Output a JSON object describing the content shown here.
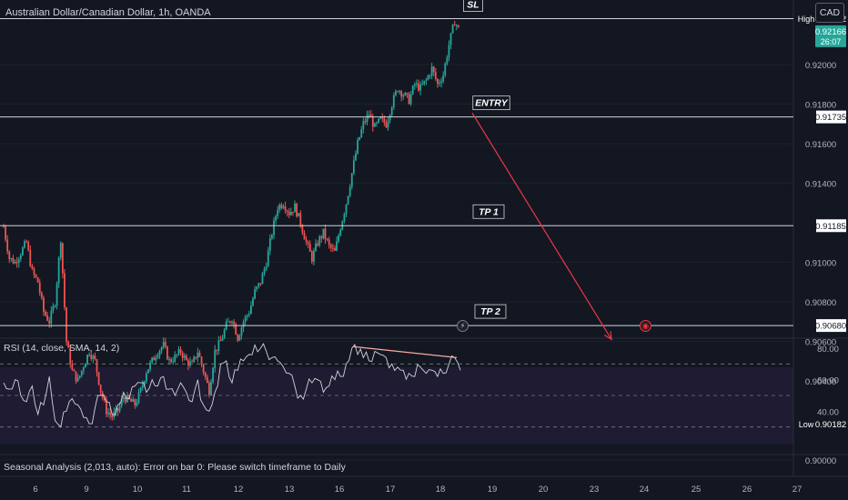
{
  "header": {
    "symbol_title": "Australian Dollar/Canadian Dollar, 1h, OANDA",
    "currency_button": "CAD"
  },
  "colors": {
    "background": "#131722",
    "bull": "#26a69a",
    "bear": "#ef5350",
    "level_line": "#d1d4dc",
    "arrow": "#f23645",
    "rsi_line": "#d1d4dc",
    "rsi_band": "#1e1b33",
    "divergence": "#f7a9a0",
    "last_price_badge": "#26a69a"
  },
  "chart_data": {
    "type": "candlestick",
    "timeframe": "1h",
    "y_axis": {
      "range": [
        0.9,
        0.924
      ],
      "tick_labels": [
        "0.92000",
        "0.91800",
        "0.91600",
        "0.91400",
        "0.91000",
        "0.90800",
        "0.90600",
        "0.90400",
        "0.90000"
      ],
      "tick_values": [
        0.92,
        0.918,
        0.916,
        0.914,
        0.91,
        0.908,
        0.906,
        0.904,
        0.9
      ]
    },
    "x_axis": {
      "tick_labels": [
        "6",
        "9",
        "10",
        "11",
        "12",
        "13",
        "16",
        "17",
        "18",
        "19",
        "20",
        "23",
        "24",
        "25",
        "26",
        "27"
      ]
    },
    "price_badges": [
      {
        "name": "high-label",
        "text": "High",
        "value": "0.92232",
        "price": 0.92232
      },
      {
        "name": "last-price",
        "value": "0.92166",
        "countdown": "26:07",
        "price": 0.92166
      },
      {
        "name": "entry-level",
        "value": "0.91735",
        "price": 0.91735
      },
      {
        "name": "tp1-level",
        "value": "0.91185",
        "price": 0.91185
      },
      {
        "name": "tp2-level",
        "value": "0.90680",
        "price": 0.9068
      },
      {
        "name": "low-label",
        "text": "Low",
        "value": "0.90182",
        "price": 0.90182
      }
    ],
    "levels": [
      {
        "label": "SL",
        "price": 0.92232
      },
      {
        "label": "ENTRY",
        "price": 0.91735
      },
      {
        "label": "TP 1",
        "price": 0.91185
      },
      {
        "label": "TP 2",
        "price": 0.9068
      }
    ],
    "projection_arrow": {
      "from_price": 0.91755,
      "to_price": 0.9061
    },
    "close_path": [
      0.9118,
      0.9102,
      0.91,
      0.9105,
      0.911,
      0.9095,
      0.909,
      0.9075,
      0.907,
      0.908,
      0.9112,
      0.906,
      0.9045,
      0.904,
      0.9048,
      0.9055,
      0.905,
      0.9035,
      0.9025,
      0.9022,
      0.9025,
      0.9032,
      0.903,
      0.9028,
      0.9035,
      0.9045,
      0.905,
      0.9055,
      0.9058,
      0.905,
      0.9052,
      0.9055,
      0.905,
      0.9048,
      0.9055,
      0.9045,
      0.9035,
      0.9055,
      0.906,
      0.9068,
      0.9072,
      0.9062,
      0.907,
      0.9075,
      0.9085,
      0.909,
      0.91,
      0.9115,
      0.9128,
      0.913,
      0.9125,
      0.9128,
      0.912,
      0.911,
      0.9102,
      0.911,
      0.9115,
      0.9108,
      0.9105,
      0.9118,
      0.913,
      0.9145,
      0.916,
      0.917,
      0.9175,
      0.9168,
      0.9172,
      0.917,
      0.918,
      0.9188,
      0.9185,
      0.9182,
      0.919,
      0.9188,
      0.9192,
      0.9198,
      0.919,
      0.9195,
      0.921,
      0.9222,
      0.9216
    ],
    "rsi": {
      "title": "RSI (14, close, SMA, 14, 2)",
      "range": [
        25,
        85
      ],
      "tick_labels": [
        "80.00",
        "60.00",
        "40.00"
      ],
      "tick_values": [
        80,
        60,
        40
      ],
      "band": [
        30,
        70
      ],
      "values": [
        58,
        54,
        60,
        50,
        46,
        56,
        38,
        44,
        62,
        34,
        30,
        40,
        48,
        44,
        36,
        32,
        42,
        50,
        46,
        38,
        44,
        52,
        48,
        56,
        58,
        52,
        60,
        56,
        62,
        54,
        50,
        58,
        52,
        46,
        60,
        44,
        40,
        52,
        70,
        72,
        58,
        66,
        72,
        76,
        82,
        80,
        78,
        74,
        72,
        68,
        64,
        56,
        50,
        54,
        58,
        60,
        52,
        56,
        60,
        62,
        70,
        80,
        76,
        74,
        72,
        78,
        76,
        74,
        70,
        68,
        66,
        64,
        62,
        68,
        64,
        66,
        62,
        64,
        70,
        74,
        66
      ],
      "divergence_line": {
        "from_rsi": 81,
        "to_rsi": 74
      }
    }
  },
  "seasonal": {
    "text": "Seasonal Analysis (2,013, auto): Error on bar 0: Please switch timeframe to Daily"
  },
  "icons": {
    "alert_a": "lightning-icon",
    "alert_b": "alert-icon"
  }
}
